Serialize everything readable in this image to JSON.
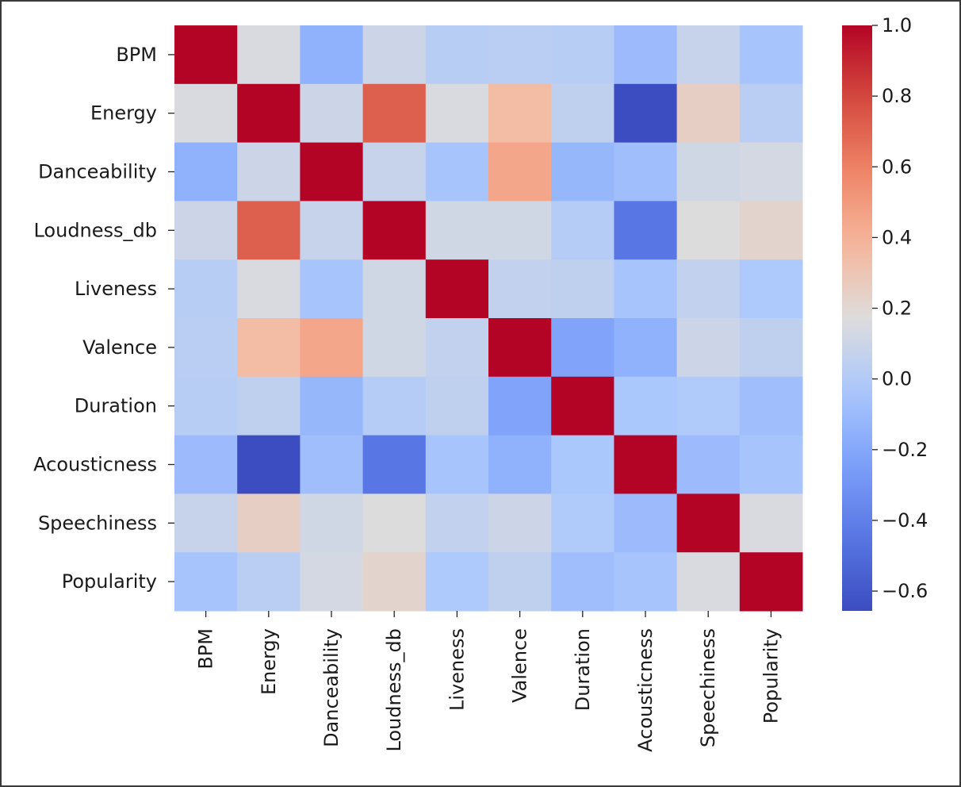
{
  "chart_data": {
    "type": "heatmap",
    "title": "",
    "xlabel": "",
    "ylabel": "",
    "colormap": "coolwarm",
    "labels": [
      "BPM",
      "Energy",
      "Danceability",
      "Loudness_db",
      "Liveness",
      "Valence",
      "Duration",
      "Acousticness",
      "Speechiness",
      "Popularity"
    ],
    "values": [
      [
        1.0,
        0.15,
        -0.15,
        0.1,
        0.02,
        0.03,
        0.02,
        -0.1,
        0.08,
        -0.05
      ],
      [
        0.15,
        1.0,
        0.1,
        0.72,
        0.15,
        0.35,
        0.05,
        -0.65,
        0.25,
        0.03
      ],
      [
        -0.15,
        0.1,
        1.0,
        0.08,
        -0.05,
        0.45,
        -0.12,
        -0.08,
        0.12,
        0.13
      ],
      [
        0.1,
        0.72,
        0.08,
        1.0,
        0.12,
        0.12,
        0.01,
        -0.45,
        0.17,
        0.22
      ],
      [
        0.02,
        0.15,
        -0.05,
        0.12,
        1.0,
        0.06,
        0.05,
        -0.05,
        0.06,
        -0.02
      ],
      [
        0.03,
        0.35,
        0.45,
        0.12,
        0.06,
        1.0,
        -0.22,
        -0.15,
        0.1,
        0.05
      ],
      [
        0.02,
        0.05,
        -0.12,
        0.01,
        0.05,
        -0.22,
        1.0,
        -0.03,
        -0.01,
        -0.08
      ],
      [
        -0.1,
        -0.65,
        -0.08,
        -0.45,
        -0.05,
        -0.15,
        -0.03,
        1.0,
        -0.1,
        -0.05
      ],
      [
        0.08,
        0.25,
        0.12,
        0.17,
        0.06,
        0.1,
        -0.01,
        -0.1,
        1.0,
        0.15
      ],
      [
        -0.05,
        0.03,
        0.13,
        0.22,
        -0.02,
        0.05,
        -0.08,
        -0.05,
        0.15,
        1.0
      ]
    ],
    "vmin": -0.656,
    "vmax": 1.0,
    "colorbar": {
      "ticks": [
        1.0,
        0.8,
        0.6,
        0.4,
        0.2,
        0.0,
        -0.2,
        -0.4,
        -0.6
      ],
      "tick_labels": [
        "1.0",
        "0.8",
        "0.6",
        "0.4",
        "0.2",
        "0.0",
        "−0.2",
        "−0.4",
        "−0.6"
      ]
    }
  }
}
